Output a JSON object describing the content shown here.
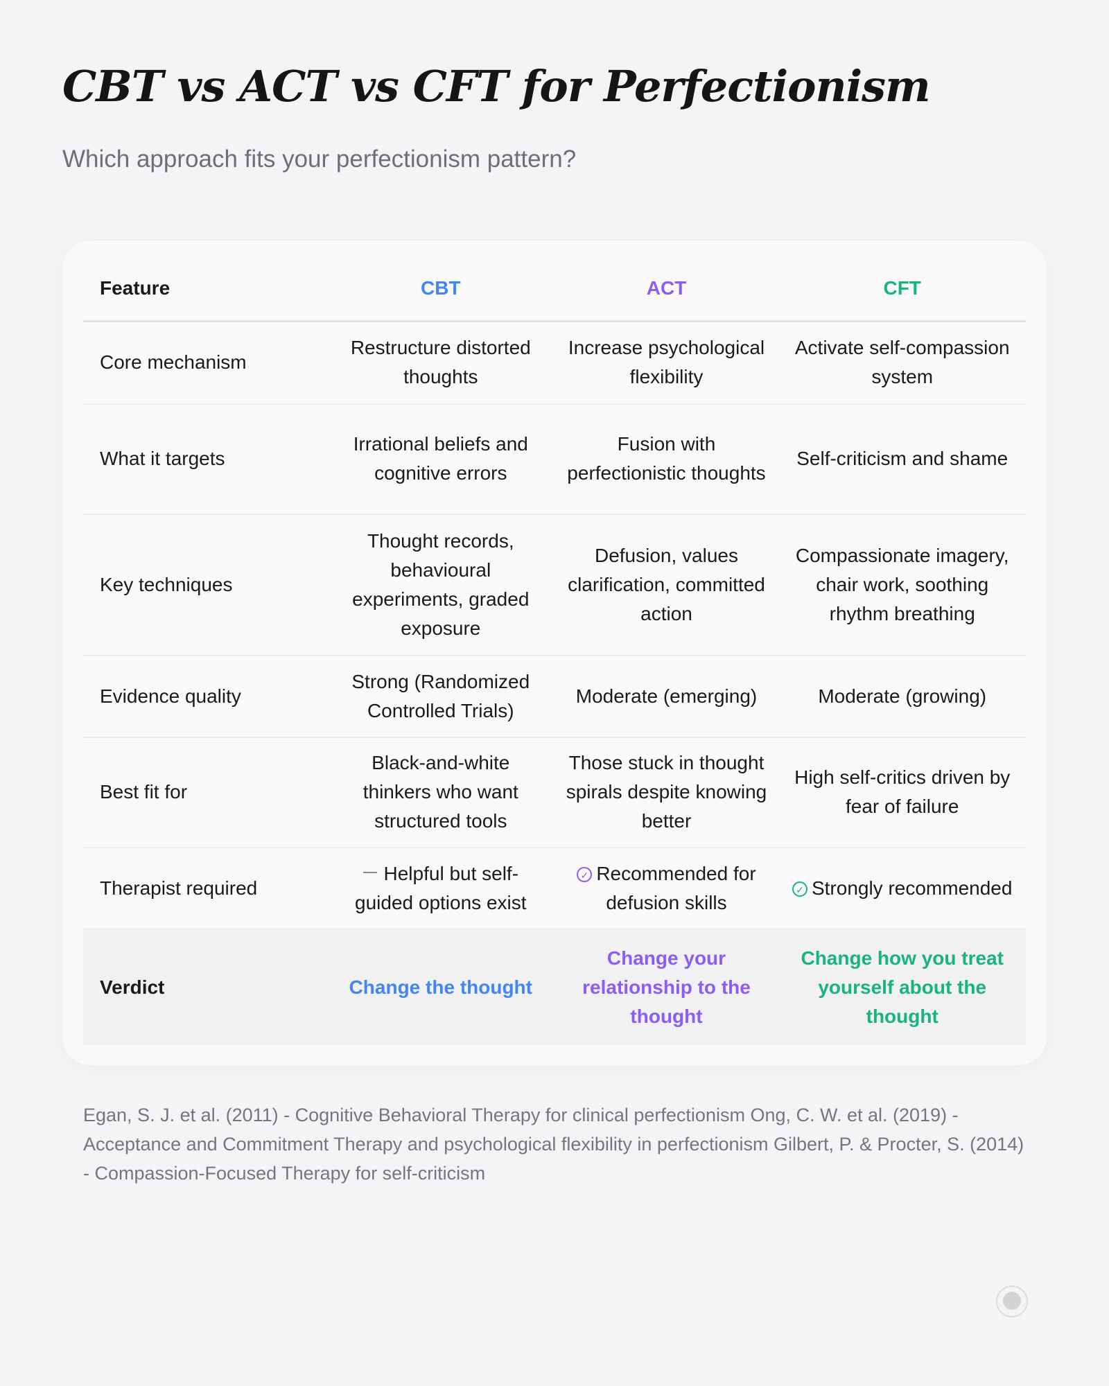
{
  "title": "CBT vs ACT vs CFT for Perfectionism",
  "subtitle": "Which approach fits your perfectionism pattern?",
  "colors": {
    "cbt": "#4286f5",
    "act": "#8b5cf6",
    "cft": "#17b47c"
  },
  "table": {
    "headers": [
      "Feature",
      "CBT",
      "ACT",
      "CFT"
    ],
    "rows": [
      {
        "feature": "Core mechanism",
        "cbt": "Restructure distorted thoughts",
        "act": "Increase psychological flexibility",
        "cft": "Activate self-compassion system"
      },
      {
        "feature": "What it targets",
        "cbt": "Irrational beliefs and cognitive errors",
        "act": "Fusion with perfectionistic thoughts",
        "cft": "Self-criticism and shame"
      },
      {
        "feature": "Key techniques",
        "cbt": "Thought records, behavioural experiments, graded exposure",
        "act": "Defusion, values clarification, committed action",
        "cft": "Compassionate imagery, chair work, soothing rhythm breathing"
      },
      {
        "feature": "Evidence quality",
        "cbt": "Strong (Randomized Controlled Trials)",
        "act": "Moderate (emerging)",
        "cft": "Moderate (growing)"
      },
      {
        "feature": "Best fit for",
        "cbt": "Black-and-white thinkers who want structured tools",
        "act": "Those stuck in thought spirals despite knowing better",
        "cft": "High self-critics driven by fear of failure"
      },
      {
        "feature": "Therapist required",
        "cbt": "Helpful but self-guided options exist",
        "act": "Recommended for defusion skills",
        "cft": "Strongly recommended",
        "icons": {
          "cbt": "dash-icon",
          "act": "check-circle-icon",
          "cft": "check-circle-icon"
        }
      }
    ],
    "verdict": {
      "feature": "Verdict",
      "cbt": "Change the thought",
      "act": "Change your relationship to the thought",
      "cft": "Change how you treat yourself about the thought"
    }
  },
  "footer": "Egan, S. J. et al. (2011) - Cognitive Behavioral Therapy for clinical perfectionism   Ong, C. W. et al. (2019) - Acceptance and Commitment Therapy and psychological flexibility in perfectionism   Gilbert, P. & Procter, S. (2014) - Compassion-Focused Therapy for self-criticism"
}
